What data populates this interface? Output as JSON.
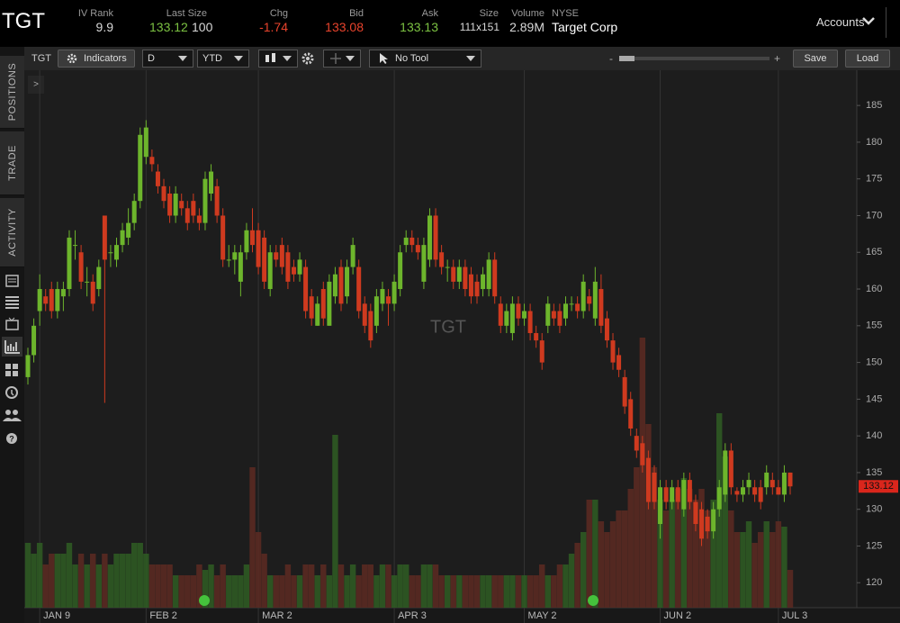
{
  "header": {
    "symbol": "TGT",
    "iv_rank_label": "IV Rank",
    "iv_rank": 9.9,
    "last_label": "Last Size",
    "last": 133.12,
    "last_size": 100,
    "chg_label": "Chg",
    "chg": -1.74,
    "bid_label": "Bid",
    "bid": 133.08,
    "ask_label": "Ask",
    "ask": 133.13,
    "size_label": "Size",
    "size": "111x151",
    "volume_label": "Volume",
    "volume": "2.89M",
    "exchange": "NYSE",
    "company": "Target Corp",
    "accounts": "Accounts"
  },
  "toolbar": {
    "symbol": "TGT",
    "indicators": "Indicators",
    "period": "D",
    "range": "YTD",
    "tool": "No Tool",
    "zoom_out": "-",
    "zoom_in": "+",
    "save": "Save",
    "load": "Load",
    "expand": ">"
  },
  "sidebar": {
    "tabs": [
      "POSITIONS",
      "TRADE",
      "ACTIVITY"
    ]
  },
  "chart_data": {
    "type": "candlestick",
    "watermark": "TGT",
    "up_color": "#6db52c",
    "down_color": "#cf3a1f",
    "volume_up_color": "#2f5a24",
    "volume_down_color": "#5a2a22",
    "ylim": [
      116.6,
      189.8
    ],
    "yticks": [
      120,
      125,
      130,
      135,
      140,
      145,
      150,
      155,
      160,
      165,
      170,
      175,
      180,
      185
    ],
    "categories": [
      null,
      null,
      "JAN 9",
      null,
      null,
      null,
      null,
      null,
      null,
      null,
      null,
      null,
      null,
      null,
      null,
      null,
      null,
      null,
      null,
      null,
      "FEB 2",
      null,
      null,
      null,
      null,
      null,
      null,
      null,
      null,
      null,
      null,
      null,
      null,
      null,
      null,
      null,
      null,
      null,
      null,
      "MAR 2",
      null,
      null,
      null,
      null,
      null,
      null,
      null,
      null,
      null,
      null,
      null,
      null,
      null,
      null,
      null,
      null,
      null,
      null,
      null,
      null,
      null,
      null,
      "APR 3",
      null,
      null,
      null,
      null,
      null,
      null,
      null,
      null,
      null,
      null,
      null,
      null,
      null,
      null,
      null,
      null,
      null,
      null,
      null,
      null,
      null,
      "MAY 2",
      null,
      null,
      null,
      null,
      null,
      null,
      null,
      null,
      null,
      null,
      null,
      null,
      null,
      null,
      null,
      null,
      null,
      null,
      null,
      null,
      null,
      null,
      "JUN 2",
      null,
      null,
      null,
      null,
      null,
      null,
      null,
      null,
      null,
      null,
      null,
      null,
      null,
      null,
      null,
      null,
      null,
      null,
      null,
      "JUL 3",
      null,
      null
    ],
    "ohlc": [
      [
        148,
        152,
        147,
        151
      ],
      [
        151,
        156,
        150,
        155
      ],
      [
        157,
        162,
        155,
        160
      ],
      [
        159,
        160,
        157,
        158
      ],
      [
        160,
        161,
        156,
        157
      ],
      [
        157,
        161,
        156,
        160
      ],
      [
        159,
        161,
        157,
        160
      ],
      [
        160,
        168,
        159,
        167
      ],
      [
        166,
        168,
        164,
        166
      ],
      [
        165,
        166,
        160,
        161
      ],
      [
        161,
        163,
        159,
        161
      ],
      [
        161,
        162,
        157,
        158
      ],
      [
        160,
        164,
        159,
        163
      ],
      [
        170,
        170,
        144.5,
        164
      ],
      [
        165,
        166,
        163,
        165
      ],
      [
        164,
        167,
        163,
        166
      ],
      [
        166,
        169,
        165,
        168
      ],
      [
        167,
        171,
        166,
        169
      ],
      [
        169,
        173,
        168,
        172
      ],
      [
        172,
        182,
        171,
        181
      ],
      [
        178,
        183,
        177,
        182
      ],
      [
        178,
        179,
        176,
        177
      ],
      [
        176,
        177,
        173,
        174
      ],
      [
        174,
        175,
        171,
        172
      ],
      [
        173,
        174,
        169,
        170
      ],
      [
        170,
        174,
        169,
        173
      ],
      [
        172,
        173,
        170,
        171
      ],
      [
        171,
        172,
        168,
        169
      ],
      [
        172,
        173,
        169,
        170
      ],
      [
        170,
        171,
        168,
        169
      ],
      [
        169,
        176,
        168,
        175
      ],
      [
        173,
        177,
        172,
        176
      ],
      [
        174,
        175,
        169,
        170
      ],
      [
        170,
        171,
        163,
        164
      ],
      [
        164,
        166,
        163,
        164
      ],
      [
        164,
        166,
        162,
        165
      ],
      [
        161,
        166,
        159,
        165
      ],
      [
        165,
        169,
        164,
        168
      ],
      [
        168,
        171,
        165,
        166
      ],
      [
        168,
        169,
        162,
        163
      ],
      [
        167,
        168,
        160,
        161
      ],
      [
        160,
        166,
        159,
        165
      ],
      [
        165,
        166,
        163,
        164
      ],
      [
        166,
        167,
        162,
        163
      ],
      [
        165,
        166,
        160,
        161
      ],
      [
        163,
        164,
        161,
        162
      ],
      [
        162,
        165,
        161,
        164
      ],
      [
        163,
        164,
        156,
        157
      ],
      [
        159,
        160,
        155,
        156
      ],
      [
        155,
        159,
        155,
        158
      ],
      [
        160,
        161,
        155,
        156
      ],
      [
        155,
        162,
        155,
        161
      ],
      [
        159,
        163,
        158,
        162
      ],
      [
        163,
        164,
        157,
        158
      ],
      [
        159,
        164,
        158,
        163
      ],
      [
        163,
        167,
        162,
        166
      ],
      [
        163,
        164,
        156,
        157
      ],
      [
        158,
        159,
        154,
        155
      ],
      [
        157,
        158,
        152,
        153
      ],
      [
        155,
        160,
        154,
        159
      ],
      [
        158,
        161,
        157,
        160
      ],
      [
        159,
        160,
        155,
        158
      ],
      [
        158,
        162,
        157,
        161
      ],
      [
        160,
        166,
        159,
        165
      ],
      [
        166,
        168,
        165,
        167
      ],
      [
        167,
        168,
        165,
        166
      ],
      [
        166,
        167,
        164,
        165
      ],
      [
        161,
        167,
        160,
        166
      ],
      [
        164,
        171,
        163,
        170
      ],
      [
        170,
        171,
        163,
        164
      ],
      [
        165,
        166,
        162,
        163
      ],
      [
        163,
        164,
        161,
        163
      ],
      [
        163,
        164,
        160,
        161
      ],
      [
        161,
        164,
        160,
        163
      ],
      [
        163,
        164,
        159,
        160
      ],
      [
        162,
        163,
        158,
        159
      ],
      [
        161,
        162,
        158,
        159
      ],
      [
        160,
        163,
        159,
        162
      ],
      [
        160,
        165,
        159,
        164
      ],
      [
        164,
        165,
        158,
        159
      ],
      [
        158,
        159,
        154,
        155
      ],
      [
        155,
        158,
        154,
        157
      ],
      [
        154,
        159,
        153,
        158
      ],
      [
        158,
        159,
        155,
        156
      ],
      [
        156,
        158,
        155,
        157
      ],
      [
        157,
        158,
        153,
        154
      ],
      [
        154,
        155,
        152,
        153
      ],
      [
        153,
        154,
        149,
        150
      ],
      [
        155,
        159,
        154,
        158
      ],
      [
        157,
        158,
        155,
        156
      ],
      [
        157,
        158,
        154,
        155
      ],
      [
        156,
        159,
        155,
        158
      ],
      [
        158,
        159,
        157,
        158
      ],
      [
        158,
        159,
        156,
        157
      ],
      [
        157,
        162,
        156,
        161
      ],
      [
        159,
        160,
        157,
        158
      ],
      [
        156,
        163,
        155,
        161
      ],
      [
        160,
        162,
        154,
        155
      ],
      [
        156,
        157,
        152,
        153
      ],
      [
        153,
        154,
        149,
        150
      ],
      [
        151,
        152,
        148,
        149
      ],
      [
        148,
        149,
        143,
        144
      ],
      [
        145,
        146,
        140,
        141
      ],
      [
        140,
        141,
        137,
        138
      ],
      [
        139,
        140,
        135,
        136
      ],
      [
        137,
        138,
        130,
        131
      ],
      [
        135,
        136,
        130,
        131
      ],
      [
        128,
        134,
        126,
        133
      ],
      [
        133,
        134,
        130,
        131
      ],
      [
        131,
        134,
        130,
        133
      ],
      [
        133,
        134,
        130,
        131
      ],
      [
        130,
        135,
        129,
        134
      ],
      [
        134,
        135,
        130,
        131
      ],
      [
        131,
        132,
        127,
        128
      ],
      [
        130,
        131,
        125,
        126
      ],
      [
        129,
        130,
        126,
        127
      ],
      [
        127,
        131,
        126,
        130
      ],
      [
        130,
        134,
        129,
        133
      ],
      [
        132,
        139,
        131,
        138
      ],
      [
        138,
        139,
        132,
        133
      ],
      [
        132.5,
        133,
        131,
        132
      ],
      [
        132,
        134,
        131,
        133
      ],
      [
        133,
        135,
        132,
        134
      ],
      [
        133,
        134,
        131,
        132
      ],
      [
        133,
        134,
        130,
        131
      ],
      [
        133,
        136,
        132,
        135
      ],
      [
        134,
        135,
        132,
        133
      ],
      [
        133,
        134,
        132,
        132
      ],
      [
        132,
        136,
        131,
        135
      ],
      [
        135,
        135,
        132,
        133.12
      ]
    ],
    "volume": [
      6,
      5,
      6,
      4,
      5,
      5,
      5,
      6,
      4,
      5,
      4,
      5,
      4,
      5,
      4,
      5,
      5,
      5,
      6,
      6,
      5,
      4,
      4,
      4,
      4,
      3,
      3,
      3,
      3,
      4,
      3.5,
      4,
      3,
      4,
      3,
      3,
      3,
      4,
      13,
      7,
      5,
      3,
      3,
      3,
      4,
      3,
      3,
      4,
      4,
      3,
      4,
      3,
      16,
      4,
      3,
      4,
      3,
      4,
      4,
      3,
      4,
      4,
      3,
      4,
      4,
      3,
      3,
      4,
      4,
      4,
      3,
      3,
      3,
      3,
      3,
      3,
      3,
      3,
      3,
      3,
      3,
      3,
      3,
      3,
      3,
      3,
      3,
      4,
      3,
      3,
      4,
      4,
      5,
      6,
      7,
      10,
      10,
      8,
      7,
      8,
      9,
      9,
      11,
      13,
      25,
      17,
      13,
      10,
      9,
      10,
      11,
      12,
      11,
      10,
      11,
      9,
      10,
      18,
      14,
      9,
      7,
      7,
      8,
      6,
      7,
      8,
      7,
      8,
      7.5,
      3.5
    ]
  }
}
